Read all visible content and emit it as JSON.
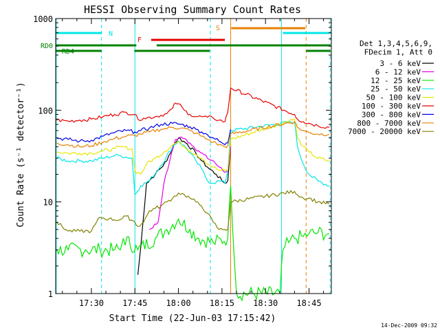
{
  "chart_data": {
    "type": "line",
    "title": "HESSI Observing Summary Count Rates",
    "xlabel": "Start Time (22-Jun-03 17:15:42)",
    "ylabel": "Count Rate (s⁻¹ detector⁻¹)",
    "yscale": "log",
    "ylim": [
      1,
      1000
    ],
    "xlim_minutes": [
      17.7,
      112.7
    ],
    "x_tick_labels": [
      "17:30",
      "17:45",
      "18:00",
      "18:15",
      "18:30",
      "18:45"
    ],
    "y_tick_labels": [
      "1",
      "10",
      "100",
      "1000"
    ],
    "legend_header": [
      "Det 1,3,4,5,6,9,",
      "FDecim 1, Att 0"
    ],
    "legend_position": "right",
    "footer_date": "14-Dec-2009 09:32",
    "series": [
      {
        "name": "3 - 6 keV",
        "color": "#000000",
        "points": [
          [
            46,
            1.6
          ],
          [
            47,
            3.2
          ],
          [
            49,
            16
          ],
          [
            52,
            20
          ],
          [
            56,
            28
          ],
          [
            58,
            40
          ],
          [
            60,
            50
          ],
          [
            63,
            43
          ],
          [
            66,
            34
          ],
          [
            68,
            28
          ],
          [
            70,
            24
          ],
          [
            73,
            20
          ],
          [
            75,
            17
          ],
          [
            76,
            16
          ],
          [
            77,
            17
          ],
          [
            78,
            40
          ]
        ]
      },
      {
        "name": "6 - 12 keV",
        "color": "#e600e6",
        "points": [
          [
            50,
            5.0
          ],
          [
            53,
            6.0
          ],
          [
            55,
            16
          ],
          [
            57,
            28
          ],
          [
            59,
            48
          ],
          [
            61,
            51
          ],
          [
            64,
            44
          ],
          [
            67,
            36
          ],
          [
            70,
            30
          ],
          [
            72,
            28
          ],
          [
            74,
            24
          ],
          [
            76,
            21
          ],
          [
            77,
            22
          ],
          [
            78,
            40
          ]
        ]
      },
      {
        "name": "12 - 25 keV",
        "color": "#00e600",
        "points": [
          [
            18,
            3
          ],
          [
            22,
            3
          ],
          [
            28,
            3
          ],
          [
            33,
            3
          ],
          [
            38,
            3
          ],
          [
            40,
            3
          ],
          [
            41,
            4
          ],
          [
            46,
            3
          ],
          [
            52,
            4
          ],
          [
            56,
            5
          ],
          [
            60,
            6.5
          ],
          [
            64,
            5
          ],
          [
            67,
            4
          ],
          [
            72,
            3.6
          ],
          [
            77,
            4
          ],
          [
            78,
            15
          ],
          [
            80,
            1
          ],
          [
            95,
            1
          ],
          [
            96,
            3
          ],
          [
            98,
            3.6
          ],
          [
            100,
            4
          ],
          [
            103,
            4.2
          ],
          [
            105,
            4.5
          ],
          [
            108,
            4.6
          ],
          [
            112,
            4.5
          ]
        ]
      },
      {
        "name": "25 - 50 keV",
        "color": "#00e6e6",
        "points": [
          [
            18,
            30
          ],
          [
            22,
            28
          ],
          [
            26,
            28
          ],
          [
            30,
            28
          ],
          [
            34,
            30
          ],
          [
            38,
            32
          ],
          [
            40,
            32
          ],
          [
            44,
            30
          ],
          [
            45,
            12
          ],
          [
            47,
            15
          ],
          [
            50,
            17
          ],
          [
            54,
            25
          ],
          [
            58,
            40
          ],
          [
            60,
            46
          ],
          [
            63,
            38
          ],
          [
            66,
            28
          ],
          [
            68,
            23
          ],
          [
            70,
            17
          ],
          [
            72,
            16
          ],
          [
            74,
            17
          ],
          [
            76,
            16
          ],
          [
            77,
            22
          ],
          [
            78,
            60
          ],
          [
            100,
            75
          ],
          [
            101,
            40
          ],
          [
            103,
            26
          ],
          [
            105,
            20
          ],
          [
            108,
            17
          ],
          [
            112,
            15
          ]
        ]
      },
      {
        "name": "50 - 100 keV",
        "color": "#e6e600",
        "points": [
          [
            18,
            35
          ],
          [
            22,
            34
          ],
          [
            26,
            34
          ],
          [
            30,
            34
          ],
          [
            34,
            36
          ],
          [
            38,
            38
          ],
          [
            40,
            40
          ],
          [
            44,
            38
          ],
          [
            45,
            22
          ],
          [
            47,
            20
          ],
          [
            49,
            26
          ],
          [
            52,
            30
          ],
          [
            55,
            35
          ],
          [
            58,
            42
          ],
          [
            60,
            45
          ],
          [
            62,
            40
          ],
          [
            64,
            36
          ],
          [
            66,
            33
          ],
          [
            68,
            30
          ],
          [
            69,
            28
          ],
          [
            70,
            26
          ],
          [
            72,
            24
          ],
          [
            74,
            22
          ],
          [
            76,
            22
          ],
          [
            77,
            22
          ],
          [
            78,
            48
          ],
          [
            100,
            80
          ],
          [
            101,
            50
          ],
          [
            103,
            40
          ],
          [
            105,
            35
          ],
          [
            108,
            30
          ],
          [
            112,
            28
          ]
        ]
      },
      {
        "name": "100 - 300 keV",
        "color": "#e60000",
        "points": [
          [
            18,
            78
          ],
          [
            22,
            76
          ],
          [
            26,
            78
          ],
          [
            30,
            80
          ],
          [
            34,
            85
          ],
          [
            38,
            90
          ],
          [
            42,
            95
          ],
          [
            45,
            90
          ],
          [
            46,
            80
          ],
          [
            48,
            82
          ],
          [
            52,
            85
          ],
          [
            56,
            92
          ],
          [
            58,
            105
          ],
          [
            59,
            120
          ],
          [
            60,
            118
          ],
          [
            62,
            100
          ],
          [
            64,
            90
          ],
          [
            66,
            85
          ],
          [
            68,
            85
          ],
          [
            70,
            84
          ],
          [
            72,
            82
          ],
          [
            74,
            78
          ],
          [
            76,
            75
          ],
          [
            77,
            95
          ],
          [
            78,
            175
          ],
          [
            100,
            90
          ],
          [
            101,
            80
          ],
          [
            103,
            75
          ],
          [
            105,
            72
          ],
          [
            108,
            68
          ],
          [
            112,
            65
          ]
        ]
      },
      {
        "name": "300 - 800 keV",
        "color": "#0000e6",
        "points": [
          [
            18,
            50
          ],
          [
            22,
            48
          ],
          [
            26,
            46
          ],
          [
            30,
            47
          ],
          [
            34,
            52
          ],
          [
            38,
            57
          ],
          [
            42,
            60
          ],
          [
            45,
            58
          ],
          [
            47,
            60
          ],
          [
            50,
            64
          ],
          [
            54,
            70
          ],
          [
            58,
            72
          ],
          [
            61,
            70
          ],
          [
            64,
            66
          ],
          [
            66,
            62
          ],
          [
            68,
            58
          ],
          [
            70,
            54
          ],
          [
            72,
            50
          ],
          [
            74,
            46
          ],
          [
            76,
            42
          ],
          [
            77,
            44
          ],
          [
            78,
            62
          ]
        ]
      },
      {
        "name": "800 - 7000 keV",
        "color": "#e68000",
        "points": [
          [
            18,
            44
          ],
          [
            22,
            42
          ],
          [
            26,
            40
          ],
          [
            30,
            41
          ],
          [
            34,
            45
          ],
          [
            38,
            49
          ],
          [
            42,
            52
          ],
          [
            45,
            53
          ],
          [
            47,
            55
          ],
          [
            50,
            58
          ],
          [
            54,
            62
          ],
          [
            58,
            65
          ],
          [
            61,
            64
          ],
          [
            64,
            60
          ],
          [
            66,
            56
          ],
          [
            68,
            52
          ],
          [
            70,
            48
          ],
          [
            72,
            45
          ],
          [
            74,
            42
          ],
          [
            76,
            40
          ],
          [
            77,
            41
          ],
          [
            78,
            55
          ],
          [
            100,
            75
          ],
          [
            101,
            65
          ],
          [
            103,
            60
          ],
          [
            105,
            57
          ],
          [
            108,
            55
          ],
          [
            112,
            55
          ]
        ]
      },
      {
        "name": "7000 - 20000 keV",
        "color": "#808000",
        "points": [
          [
            18,
            6
          ],
          [
            22,
            4.8
          ],
          [
            26,
            4.8
          ],
          [
            30,
            4.8
          ],
          [
            33,
            6.8
          ],
          [
            36,
            6.5
          ],
          [
            40,
            6.4
          ],
          [
            42,
            7
          ],
          [
            45,
            6
          ],
          [
            46,
            5.4
          ],
          [
            48,
            6
          ],
          [
            50,
            8
          ],
          [
            52,
            8.5
          ],
          [
            54,
            9
          ],
          [
            56,
            10
          ],
          [
            58,
            11
          ],
          [
            60,
            12.5
          ],
          [
            62,
            12
          ],
          [
            64,
            11
          ],
          [
            66,
            10
          ],
          [
            68,
            9
          ],
          [
            70,
            7.5
          ],
          [
            72,
            6
          ],
          [
            74,
            5
          ],
          [
            76,
            5
          ],
          [
            77,
            5
          ],
          [
            78,
            10
          ],
          [
            100,
            13
          ],
          [
            101,
            12
          ],
          [
            103,
            11
          ],
          [
            105,
            11
          ],
          [
            108,
            10
          ],
          [
            112,
            9.5
          ]
        ]
      }
    ],
    "flag_bars": [
      {
        "label": "N",
        "color": "#00e6e6",
        "segments": [
          [
            17.7,
            33.5
          ],
          [
            96,
            112
          ]
        ]
      },
      {
        "label": "F",
        "color": "#e60000",
        "segments": [
          [
            50.6,
            76
          ]
        ]
      },
      {
        "label": "S",
        "color": "#e68000",
        "segments": [
          [
            78.2,
            103.7
          ]
        ]
      },
      {
        "label": "RD0",
        "color": "#008000",
        "segments": [
          [
            17.7,
            45.5
          ],
          [
            52.5,
            71.5
          ],
          [
            71.5,
            104
          ],
          [
            104,
            112.4
          ]
        ]
      },
      {
        "label": "RD4",
        "color": "#008000",
        "segments": [
          [
            17.7,
            33.5
          ],
          [
            44.8,
            70.8
          ],
          [
            104,
            112.4
          ]
        ]
      }
    ]
  }
}
